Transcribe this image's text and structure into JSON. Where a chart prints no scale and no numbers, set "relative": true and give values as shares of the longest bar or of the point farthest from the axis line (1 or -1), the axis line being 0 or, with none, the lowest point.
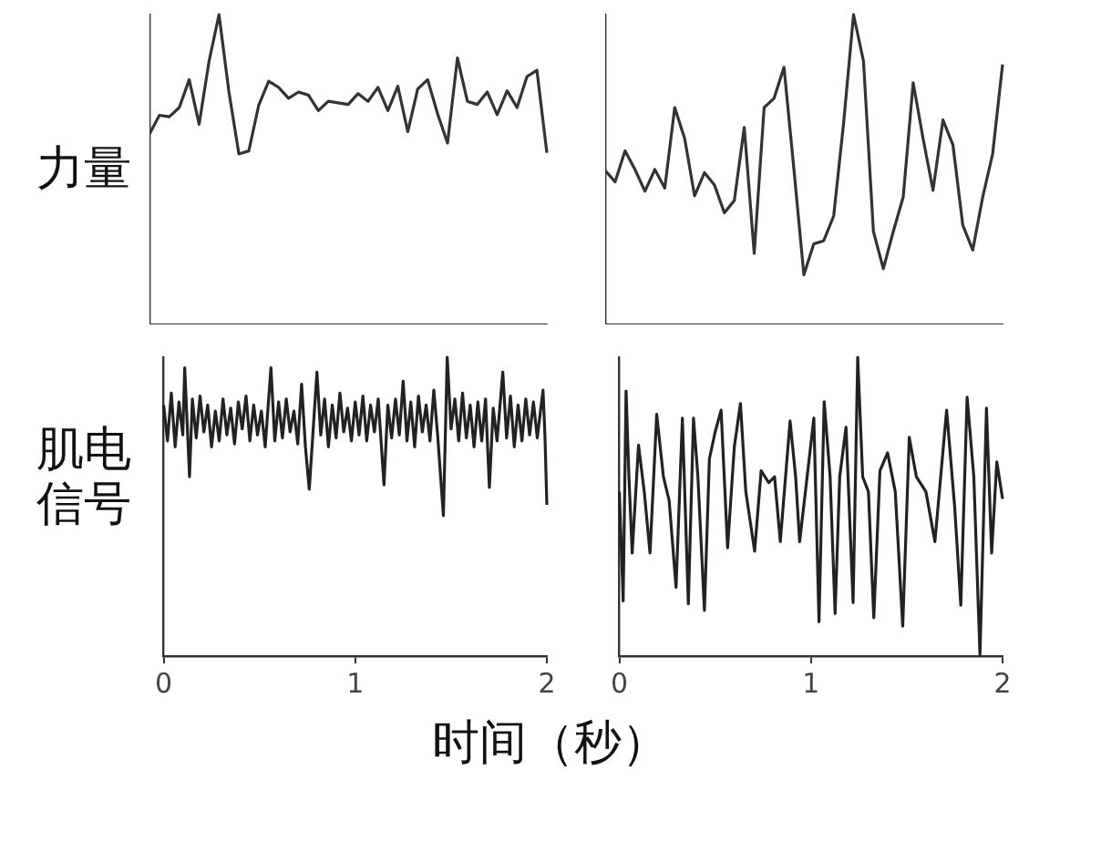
{
  "chart_data": [
    {
      "type": "line",
      "relative": true,
      "ylabel": "力量",
      "categories": [
        null,
        null,
        null,
        null,
        null,
        null,
        null,
        null,
        null,
        null,
        null,
        null,
        null,
        null,
        null,
        null,
        null,
        null,
        null,
        null,
        null,
        null,
        null,
        null,
        null,
        null,
        null,
        null,
        null,
        null,
        null,
        null,
        null,
        null,
        null,
        null,
        null,
        null,
        null,
        null,
        null
      ],
      "tick_labels": false,
      "marker": "none",
      "line_style": "solid",
      "grid": false,
      "legend": false,
      "series": [
        {
          "color": "#333333",
          "values": [
            0.615,
            0.675,
            0.67,
            0.7,
            0.79,
            0.646,
            0.85,
            1.0,
            0.75,
            0.55,
            0.56,
            0.708,
            0.785,
            0.765,
            0.73,
            0.75,
            0.74,
            0.69,
            0.72,
            0.715,
            0.71,
            0.745,
            0.72,
            0.765,
            0.69,
            0.769,
            0.622,
            0.76,
            0.79,
            0.68,
            0.585,
            0.86,
            0.72,
            0.71,
            0.75,
            0.677,
            0.754,
            0.7,
            0.8,
            0.82,
            0.554
          ]
        }
      ]
    },
    {
      "type": "line",
      "relative": true,
      "categories": [
        null,
        null,
        null,
        null,
        null,
        null,
        null,
        null,
        null,
        null,
        null,
        null,
        null,
        null,
        null,
        null,
        null,
        null,
        null,
        null,
        null,
        null,
        null,
        null,
        null,
        null,
        null,
        null,
        null,
        null,
        null,
        null,
        null,
        null,
        null,
        null,
        null,
        null,
        null,
        null,
        null
      ],
      "tick_labels": false,
      "marker": "none",
      "line_style": "solid",
      "grid": false,
      "legend": false,
      "series": [
        {
          "color": "#333333",
          "values": [
            0.497,
            0.46,
            0.56,
            0.5,
            0.43,
            0.5,
            0.44,
            0.7,
            0.6,
            0.415,
            0.49,
            0.45,
            0.36,
            0.4,
            0.636,
            0.229,
            0.7,
            0.73,
            0.83,
            0.5,
            0.16,
            0.26,
            0.27,
            0.35,
            0.65,
            1.0,
            0.85,
            0.3,
            0.18,
            0.3,
            0.411,
            0.78,
            0.6,
            0.433,
            0.66,
            0.58,
            0.32,
            0.24,
            0.411,
            0.55,
            0.839
          ]
        }
      ]
    },
    {
      "type": "line",
      "relative": true,
      "ylabel": "肌电信号",
      "xlabel": "时间（秒）",
      "xlim": [
        0,
        2
      ],
      "xticks": [
        0,
        1,
        2
      ],
      "tick_labels": "x",
      "marker": "none",
      "line_style": "solid",
      "grid": false,
      "legend": false,
      "series": [
        {
          "color": "#222222",
          "x": [
            0,
            0.02,
            0.04,
            0.06,
            0.08,
            0.1,
            0.11,
            0.135,
            0.15,
            0.17,
            0.19,
            0.21,
            0.23,
            0.25,
            0.27,
            0.29,
            0.31,
            0.33,
            0.35,
            0.37,
            0.39,
            0.41,
            0.43,
            0.45,
            0.47,
            0.49,
            0.51,
            0.53,
            0.56,
            0.58,
            0.6,
            0.62,
            0.64,
            0.66,
            0.68,
            0.7,
            0.72,
            0.74,
            0.76,
            0.8,
            0.82,
            0.84,
            0.86,
            0.88,
            0.9,
            0.92,
            0.94,
            0.96,
            0.98,
            1.0,
            1.02,
            1.04,
            1.06,
            1.08,
            1.1,
            1.12,
            1.15,
            1.17,
            1.19,
            1.21,
            1.23,
            1.25,
            1.27,
            1.29,
            1.31,
            1.33,
            1.35,
            1.37,
            1.39,
            1.41,
            1.43,
            1.46,
            1.48,
            1.5,
            1.52,
            1.54,
            1.56,
            1.58,
            1.6,
            1.62,
            1.64,
            1.66,
            1.68,
            1.7,
            1.72,
            1.74,
            1.77,
            1.79,
            1.81,
            1.83,
            1.85,
            1.87,
            1.89,
            1.91,
            1.93,
            1.95,
            1.98,
            1.99,
            2.0
          ],
          "values": [
            0.84,
            0.72,
            0.88,
            0.7,
            0.85,
            0.74,
            0.965,
            0.6,
            0.86,
            0.73,
            0.87,
            0.75,
            0.84,
            0.7,
            0.82,
            0.72,
            0.86,
            0.74,
            0.83,
            0.71,
            0.85,
            0.76,
            0.87,
            0.72,
            0.84,
            0.74,
            0.82,
            0.7,
            0.965,
            0.72,
            0.85,
            0.73,
            0.86,
            0.75,
            0.82,
            0.71,
            0.91,
            0.7,
            0.558,
            0.95,
            0.74,
            0.86,
            0.7,
            0.84,
            0.73,
            0.88,
            0.75,
            0.83,
            0.72,
            0.85,
            0.74,
            0.87,
            0.72,
            0.84,
            0.75,
            0.86,
            0.573,
            0.84,
            0.73,
            0.86,
            0.74,
            0.92,
            0.72,
            0.85,
            0.7,
            0.87,
            0.75,
            0.84,
            0.72,
            0.89,
            0.74,
            0.47,
            1.0,
            0.76,
            0.86,
            0.72,
            0.88,
            0.73,
            0.84,
            0.7,
            0.85,
            0.72,
            0.86,
            0.564,
            0.83,
            0.72,
            0.95,
            0.73,
            0.87,
            0.7,
            0.84,
            0.72,
            0.86,
            0.74,
            0.85,
            0.73,
            0.89,
            0.74,
            0.506
          ]
        }
      ]
    },
    {
      "type": "line",
      "relative": true,
      "xlim": [
        0,
        2
      ],
      "xticks": [
        0,
        1,
        2
      ],
      "tick_labels": "x",
      "marker": "none",
      "line_style": "solid",
      "grid": false,
      "legend": false,
      "series": [
        {
          "color": "#222222",
          "x": [
            0,
            0.02,
            0.035,
            0.05,
            0.067,
            0.1,
            0.13,
            0.16,
            0.195,
            0.23,
            0.26,
            0.296,
            0.329,
            0.36,
            0.387,
            0.41,
            0.444,
            0.47,
            0.5,
            0.531,
            0.565,
            0.6,
            0.632,
            0.66,
            0.706,
            0.74,
            0.78,
            0.81,
            0.84,
            0.891,
            0.92,
            0.941,
            0.98,
            1.015,
            1.042,
            1.069,
            1.1,
            1.126,
            1.15,
            1.183,
            1.22,
            1.244,
            1.27,
            1.3,
            1.328,
            1.36,
            1.4,
            1.44,
            1.479,
            1.513,
            1.55,
            1.6,
            1.647,
            1.708,
            1.75,
            1.782,
            1.815,
            1.85,
            1.882,
            1.916,
            1.943,
            1.97,
            2.0
          ],
          "values": [
            0.55,
            0.185,
            0.887,
            0.6,
            0.345,
            0.706,
            0.55,
            0.345,
            0.809,
            0.6,
            0.52,
            0.23,
            0.796,
            0.175,
            0.796,
            0.6,
            0.153,
            0.66,
            0.75,
            0.823,
            0.362,
            0.7,
            0.845,
            0.55,
            0.351,
            0.62,
            0.58,
            0.6,
            0.383,
            0.787,
            0.6,
            0.383,
            0.6,
            0.796,
            0.115,
            0.851,
            0.6,
            0.143,
            0.6,
            0.766,
            0.179,
            1.0,
            0.6,
            0.55,
            0.128,
            0.62,
            0.68,
            0.55,
            0.1,
            0.732,
            0.6,
            0.55,
            0.383,
            0.823,
            0.5,
            0.17,
            0.866,
            0.6,
            0.004,
            0.83,
            0.345,
            0.65,
            0.526
          ]
        }
      ]
    }
  ]
}
